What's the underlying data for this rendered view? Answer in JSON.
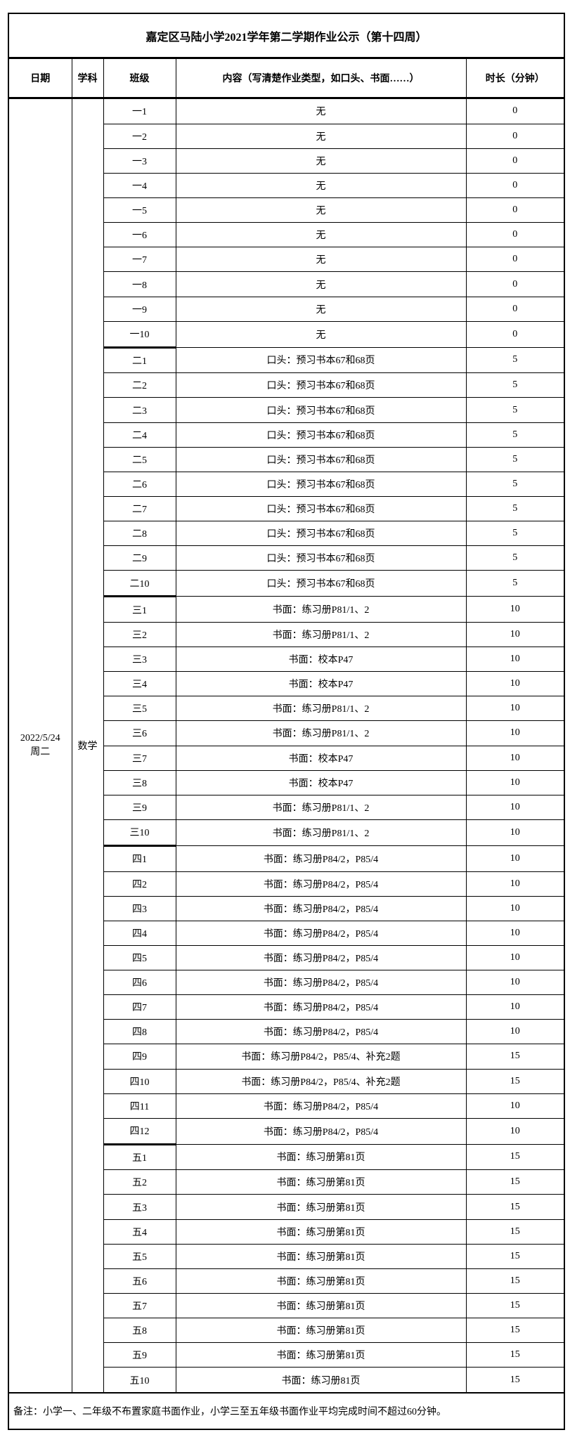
{
  "title": "嘉定区马陆小学2021学年第二学期作业公示（第十四周）",
  "header": {
    "date": "日期",
    "subject": "学科",
    "class": "班级",
    "content": "内容（写清楚作业类型，如口头、书面……）",
    "duration": "时长（分钟）"
  },
  "date": {
    "line1": "2022/5/24",
    "line2": "周二"
  },
  "subject": "数学",
  "rows": [
    {
      "class": "一1",
      "content": "无",
      "minutes": "0"
    },
    {
      "class": "一2",
      "content": "无",
      "minutes": "0"
    },
    {
      "class": "一3",
      "content": "无",
      "minutes": "0"
    },
    {
      "class": "一4",
      "content": "无",
      "minutes": "0"
    },
    {
      "class": "一5",
      "content": "无",
      "minutes": "0"
    },
    {
      "class": "一6",
      "content": "无",
      "minutes": "0"
    },
    {
      "class": "一7",
      "content": "无",
      "minutes": "0"
    },
    {
      "class": "一8",
      "content": "无",
      "minutes": "0"
    },
    {
      "class": "一9",
      "content": "无",
      "minutes": "0"
    },
    {
      "class": "一10",
      "content": "无",
      "minutes": "0"
    },
    {
      "class": "二1",
      "content": "口头：预习书本67和68页",
      "minutes": "5"
    },
    {
      "class": "二2",
      "content": "口头：预习书本67和68页",
      "minutes": "5"
    },
    {
      "class": "二3",
      "content": "口头：预习书本67和68页",
      "minutes": "5"
    },
    {
      "class": "二4",
      "content": "口头：预习书本67和68页",
      "minutes": "5"
    },
    {
      "class": "二5",
      "content": "口头：预习书本67和68页",
      "minutes": "5"
    },
    {
      "class": "二6",
      "content": "口头：预习书本67和68页",
      "minutes": "5"
    },
    {
      "class": "二7",
      "content": "口头：预习书本67和68页",
      "minutes": "5"
    },
    {
      "class": "二8",
      "content": "口头：预习书本67和68页",
      "minutes": "5"
    },
    {
      "class": "二9",
      "content": "口头：预习书本67和68页",
      "minutes": "5"
    },
    {
      "class": "二10",
      "content": "口头：预习书本67和68页",
      "minutes": "5"
    },
    {
      "class": "三1",
      "content": "书面：练习册P81/1、2",
      "minutes": "10"
    },
    {
      "class": "三2",
      "content": "书面：练习册P81/1、2",
      "minutes": "10"
    },
    {
      "class": "三3",
      "content": "书面：校本P47",
      "minutes": "10"
    },
    {
      "class": "三4",
      "content": "书面：校本P47",
      "minutes": "10"
    },
    {
      "class": "三5",
      "content": "书面：练习册P81/1、2",
      "minutes": "10"
    },
    {
      "class": "三6",
      "content": "书面：练习册P81/1、2",
      "minutes": "10"
    },
    {
      "class": "三7",
      "content": "书面：校本P47",
      "minutes": "10"
    },
    {
      "class": "三8",
      "content": "书面：校本P47",
      "minutes": "10"
    },
    {
      "class": "三9",
      "content": "书面：练习册P81/1、2",
      "minutes": "10"
    },
    {
      "class": "三10",
      "content": "书面：练习册P81/1、2",
      "minutes": "10"
    },
    {
      "class": "四1",
      "content": "书面：练习册P84/2，P85/4",
      "minutes": "10"
    },
    {
      "class": "四2",
      "content": "书面：练习册P84/2，P85/4",
      "minutes": "10"
    },
    {
      "class": "四3",
      "content": "书面：练习册P84/2，P85/4",
      "minutes": "10"
    },
    {
      "class": "四4",
      "content": "书面：练习册P84/2，P85/4",
      "minutes": "10"
    },
    {
      "class": "四5",
      "content": "书面：练习册P84/2，P85/4",
      "minutes": "10"
    },
    {
      "class": "四6",
      "content": "书面：练习册P84/2，P85/4",
      "minutes": "10"
    },
    {
      "class": "四7",
      "content": "书面：练习册P84/2，P85/4",
      "minutes": "10"
    },
    {
      "class": "四8",
      "content": "书面：练习册P84/2，P85/4",
      "minutes": "10"
    },
    {
      "class": "四9",
      "content": "书面：练习册P84/2，P85/4、补充2题",
      "minutes": "15"
    },
    {
      "class": "四10",
      "content": "书面：练习册P84/2，P85/4、补充2题",
      "minutes": "15"
    },
    {
      "class": "四11",
      "content": "书面：练习册P84/2，P85/4",
      "minutes": "10"
    },
    {
      "class": "四12",
      "content": "书面：练习册P84/2，P85/4",
      "minutes": "10"
    },
    {
      "class": "五1",
      "content": "书面：练习册第81页",
      "minutes": "15"
    },
    {
      "class": "五2",
      "content": "书面：练习册第81页",
      "minutes": "15"
    },
    {
      "class": "五3",
      "content": "书面：练习册第81页",
      "minutes": "15"
    },
    {
      "class": "五4",
      "content": "书面：练习册第81页",
      "minutes": "15"
    },
    {
      "class": "五5",
      "content": "书面：练习册第81页",
      "minutes": "15"
    },
    {
      "class": "五6",
      "content": "书面：练习册第81页",
      "minutes": "15"
    },
    {
      "class": "五7",
      "content": "书面：练习册第81页",
      "minutes": "15"
    },
    {
      "class": "五8",
      "content": "书面：练习册第81页",
      "minutes": "15"
    },
    {
      "class": "五9",
      "content": "书面：练习册第81页",
      "minutes": "15"
    },
    {
      "class": "五10",
      "content": "书面：练习册81页",
      "minutes": "15"
    }
  ],
  "footer": "备注：小学一、二年级不布置家庭书面作业，小学三至五年级书面作业平均完成时间不超过60分钟。",
  "colors": {
    "background": "#ffffff",
    "border": "#000000",
    "text": "#000000"
  }
}
